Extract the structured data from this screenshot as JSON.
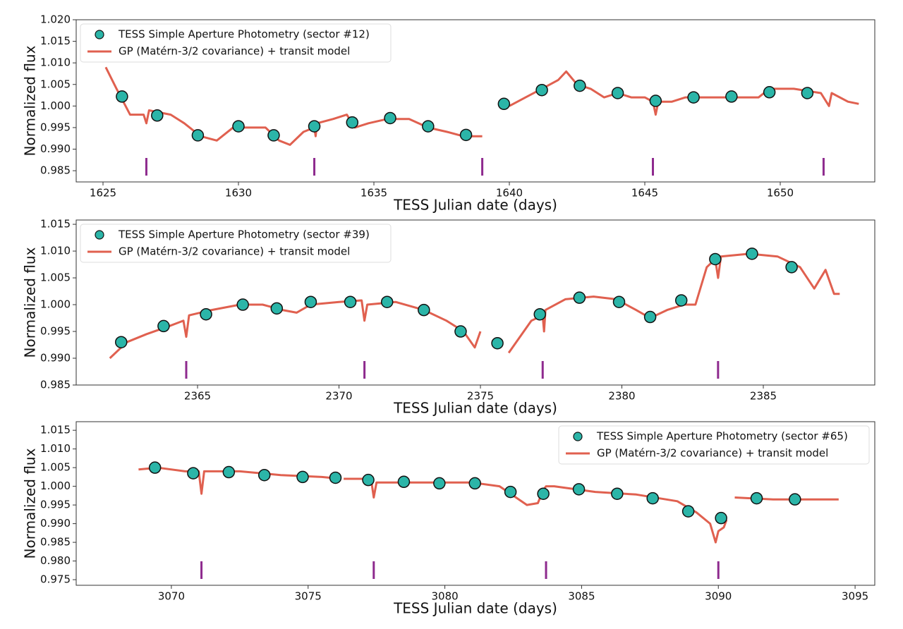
{
  "chart_data": [
    {
      "type": "scatter",
      "xlabel": "TESS Julian date (days)",
      "ylabel": "Normalized flux",
      "xlim": [
        1624.01,
        1653.49
      ],
      "ylim": [
        0.9824,
        1.02
      ],
      "xticks": [
        1625,
        1630,
        1635,
        1640,
        1645,
        1650
      ],
      "yticks": [
        0.985,
        {
          "value": 0.99,
          "label": "0.990"
        },
        0.995,
        {
          "value": 1.0,
          "label": "1.000"
        },
        1.005,
        {
          "value": 1.01,
          "label": "1.010"
        },
        1.015,
        {
          "value": 1.02,
          "label": "1.020"
        }
      ],
      "legend": "upper left",
      "series": [
        {
          "name": "TESS Simple Aperture Photometry (sector #12)",
          "type": "scatter",
          "color": "#2bb5a8",
          "x": [
            1625.7,
            1627.0,
            1628.5,
            1630.0,
            1631.3,
            1632.8,
            1634.2,
            1635.6,
            1637.0,
            1638.4,
            1639.8,
            1641.2,
            1642.6,
            1644.0,
            1645.4,
            1646.8,
            1648.2,
            1649.6,
            1651.0
          ],
          "values": [
            1.0022,
            0.9978,
            0.9932,
            0.9953,
            0.9932,
            0.9953,
            0.9962,
            0.9972,
            0.9953,
            0.9933,
            1.0005,
            1.0037,
            1.0047,
            1.003,
            1.0012,
            1.002,
            1.0022,
            1.0032,
            1.003
          ]
        },
        {
          "name": "GP (Matérn-3/2 covariance) + transit model",
          "type": "line",
          "color": "#e0604f",
          "x": [
            1625.1,
            1625.5,
            1626.0,
            1626.5,
            1626.6,
            1626.7,
            1627.5,
            1628.0,
            1628.6,
            1629.2,
            1629.8,
            1630.4,
            1631.0,
            1631.5,
            1631.9,
            1632.4,
            1632.8,
            1632.85,
            1632.9,
            1633.5,
            1634.0,
            1634.3,
            1634.8,
            1635.5,
            1636.3,
            1637.0,
            1637.7,
            1638.3,
            1639.0,
            1639.4,
            1640.0,
            1640.6,
            1641.2,
            1641.8,
            1642.1,
            1642.5,
            1643.0,
            1643.5,
            1644.0,
            1644.5,
            1645.0,
            1645.3,
            1645.4,
            1645.5,
            1646.0,
            1646.5,
            1647.5,
            1648.5,
            1649.2,
            1649.6,
            1650.5,
            1651.5,
            1651.8,
            1651.9,
            1652.5,
            1652.9
          ],
          "values": [
            1.009,
            1.004,
            0.998,
            0.998,
            0.996,
            0.999,
            0.998,
            0.996,
            0.993,
            0.992,
            0.995,
            0.995,
            0.995,
            0.992,
            0.991,
            0.994,
            0.995,
            0.993,
            0.996,
            0.997,
            0.998,
            0.995,
            0.996,
            0.997,
            0.997,
            0.995,
            0.994,
            0.993,
            0.993,
            null,
            1.0,
            1.002,
            1.004,
            1.006,
            1.008,
            1.005,
            1.004,
            1.002,
            1.003,
            1.002,
            1.002,
            1.001,
            0.998,
            1.001,
            1.001,
            1.002,
            1.002,
            1.002,
            1.002,
            1.004,
            1.004,
            1.003,
            1.0,
            1.003,
            1.001,
            1.0005
          ]
        }
      ],
      "transits": {
        "color": "#8e2a8e",
        "x": [
          1626.6,
          1632.8,
          1639.0,
          1645.3,
          1651.6
        ]
      }
    },
    {
      "type": "scatter",
      "xlabel": "TESS Julian date (days)",
      "ylabel": "Normalized flux",
      "xlim": [
        2360.71,
        2388.94
      ],
      "ylim": [
        0.985,
        1.0158
      ],
      "xticks": [
        2365,
        2370,
        2375,
        2380,
        2385
      ],
      "yticks": [
        0.985,
        {
          "value": 0.99,
          "label": "0.990"
        },
        0.995,
        {
          "value": 1.0,
          "label": "1.000"
        },
        1.005,
        {
          "value": 1.01,
          "label": "1.010"
        },
        1.015
      ],
      "legend": "upper left",
      "series": [
        {
          "name": "TESS Simple Aperture Photometry (sector #39)",
          "type": "scatter",
          "color": "#2bb5a8",
          "x": [
            2362.3,
            2363.8,
            2365.3,
            2366.6,
            2367.8,
            2369.0,
            2370.4,
            2371.7,
            2373.0,
            2374.3,
            2375.6,
            2377.1,
            2378.5,
            2379.9,
            2381.0,
            2382.1,
            2383.3,
            2384.6,
            2386.0
          ],
          "values": [
            0.993,
            0.996,
            0.9982,
            1.0,
            0.9993,
            1.0005,
            1.0005,
            1.0005,
            0.999,
            0.995,
            0.9928,
            0.9982,
            1.0013,
            1.0005,
            0.9977,
            1.0008,
            1.0085,
            1.0095,
            1.007
          ]
        },
        {
          "name": "GP (Matérn-3/2 covariance) + transit model",
          "type": "line",
          "color": "#e0604f",
          "x": [
            2361.9,
            2362.5,
            2363.2,
            2364.0,
            2364.5,
            2364.6,
            2364.7,
            2365.5,
            2366.5,
            2367.3,
            2368.0,
            2368.5,
            2369.0,
            2370.0,
            2370.8,
            2370.9,
            2371.0,
            2372.0,
            2373.0,
            2373.8,
            2374.4,
            2374.8,
            2375.0,
            2375.5,
            2376.0,
            2376.8,
            2377.2,
            2377.25,
            2377.3,
            2378.0,
            2379.0,
            2379.8,
            2380.5,
            2381.0,
            2381.6,
            2382.2,
            2382.6,
            2383.0,
            2383.3,
            2383.4,
            2383.5,
            2384.5,
            2385.5,
            2386.3,
            2386.8,
            2387.2,
            2387.5,
            2387.7
          ],
          "values": [
            0.99,
            0.993,
            0.9945,
            0.996,
            0.997,
            0.994,
            0.998,
            0.999,
            1.0,
            1.0,
            0.999,
            0.9985,
            1.0,
            1.0005,
            1.0008,
            0.997,
            1.0,
            1.0005,
            0.999,
            0.997,
            0.995,
            0.992,
            0.995,
            null,
            0.991,
            0.997,
            0.998,
            0.995,
            0.999,
            1.001,
            1.0015,
            1.001,
            0.999,
            0.9975,
            0.999,
            1.0,
            1.0,
            1.007,
            1.0085,
            1.005,
            1.009,
            1.0095,
            1.009,
            1.007,
            1.003,
            1.0065,
            1.002,
            1.002
          ]
        }
      ],
      "transits": {
        "color": "#8e2a8e",
        "x": [
          2364.6,
          2370.9,
          2377.2,
          2383.4
        ]
      }
    },
    {
      "type": "scatter",
      "xlabel": "TESS Julian date (days)",
      "ylabel": "Normalized flux",
      "xlim": [
        3066.52,
        3095.72
      ],
      "ylim": [
        0.9735,
        1.0173
      ],
      "xticks": [
        3070,
        3075,
        3080,
        3085,
        3090,
        3095
      ],
      "yticks": [
        0.975,
        {
          "value": 0.98,
          "label": "0.980"
        },
        0.985,
        {
          "value": 0.99,
          "label": "0.990"
        },
        0.995,
        {
          "value": 1.0,
          "label": "1.000"
        },
        1.005,
        {
          "value": 1.01,
          "label": "1.010"
        },
        1.015
      ],
      "legend": "upper right",
      "series": [
        {
          "name": "TESS Simple Aperture Photometry (sector #65)",
          "type": "scatter",
          "color": "#2bb5a8",
          "x": [
            3069.4,
            3070.8,
            3072.1,
            3073.4,
            3074.8,
            3076.0,
            3077.2,
            3078.5,
            3079.8,
            3081.1,
            3082.4,
            3083.6,
            3084.9,
            3086.3,
            3087.6,
            3088.9,
            3090.1,
            3091.4,
            3092.8
          ],
          "values": [
            1.005,
            1.0035,
            1.0038,
            1.003,
            1.0025,
            1.0023,
            1.0017,
            1.0012,
            1.0008,
            1.0008,
            0.9985,
            0.998,
            0.9992,
            0.998,
            0.9968,
            0.9933,
            0.9915,
            0.9968,
            0.9965
          ]
        },
        {
          "name": "GP (Matérn-3/2 covariance) + transit model",
          "type": "line",
          "color": "#e0604f",
          "x": [
            3068.8,
            3069.5,
            3070.5,
            3071.0,
            3071.1,
            3071.2,
            3072.5,
            3074.0,
            3075.5,
            3076.2,
            3076.25,
            3076.3,
            3077.3,
            3077.4,
            3077.5,
            3079.0,
            3081.0,
            3082.0,
            3082.6,
            3083.0,
            3083.4,
            3083.6,
            3083.7,
            3084.0,
            3085.5,
            3087.0,
            3088.5,
            3089.2,
            3089.7,
            3089.9,
            3090.0,
            3090.2,
            3090.3,
            3090.45,
            3090.6,
            3092.0,
            3093.5,
            3094.4
          ],
          "values": [
            1.0045,
            1.005,
            1.004,
            1.004,
            0.998,
            1.004,
            1.004,
            1.003,
            1.0025,
            1.002,
            null,
            1.002,
            1.002,
            0.997,
            1.001,
            1.001,
            1.001,
            1.0,
            0.997,
            0.995,
            0.9955,
            0.999,
            1.0,
            1.0,
            0.9985,
            0.9978,
            0.996,
            0.993,
            0.99,
            0.985,
            0.988,
            0.989,
            0.991,
            null,
            0.997,
            0.9965,
            0.9965,
            0.9965
          ]
        }
      ],
      "transits": {
        "color": "#8e2a8e",
        "x": [
          3071.1,
          3077.4,
          3083.7,
          3090.0
        ]
      }
    }
  ]
}
